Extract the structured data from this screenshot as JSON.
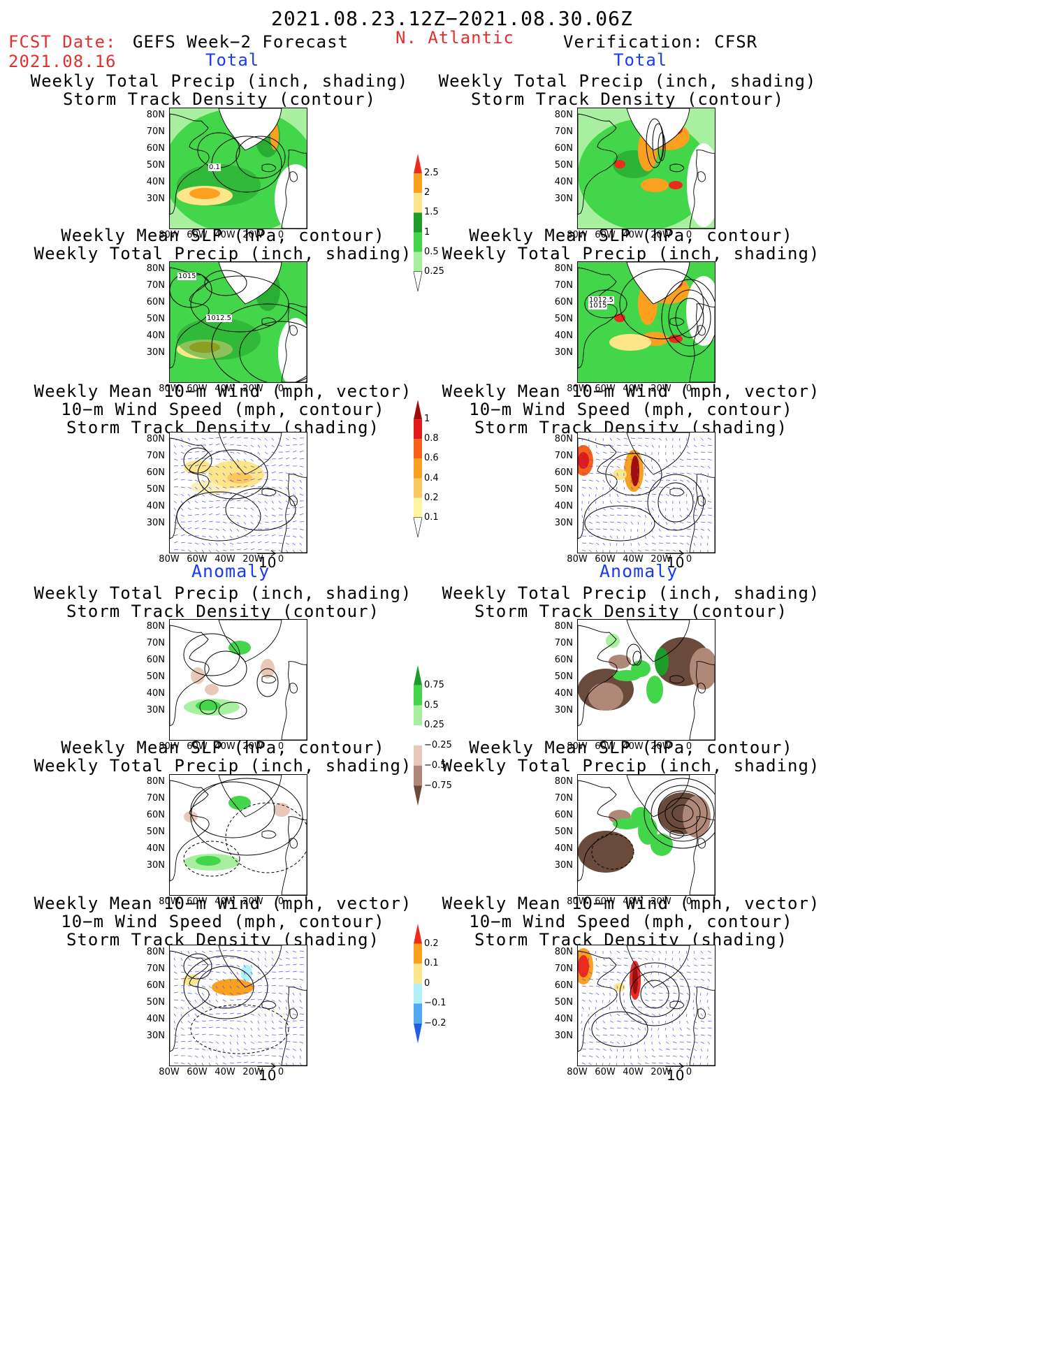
{
  "header": {
    "period": "2021.08.23.12Z−2021.08.30.06Z",
    "fcst_label": "FCST Date:",
    "fcst_date": "2021.08.16",
    "forecast_title": "GEFS Week−2 Forecast",
    "region": "N. Atlantic",
    "verification": "Verification: CFSR"
  },
  "sections": {
    "total": "Total",
    "anomaly": "Anomaly"
  },
  "panel_titles": {
    "precip_track": [
      "Weekly Total Precip (inch, shading)",
      "Storm Track Density (contour)"
    ],
    "slp_precip": [
      "Weekly Mean SLP (hPa, contour)",
      "Weekly Total Precip (inch, shading)"
    ],
    "wind_track": [
      "Weekly Mean 10−m Wind (mph, vector)",
      "10−m Wind Speed (mph, contour)",
      "Storm Track Density (shading)"
    ]
  },
  "axes": {
    "lat_labels": [
      "80N",
      "70N",
      "60N",
      "50N",
      "40N",
      "30N"
    ],
    "lon_labels": [
      "80W",
      "60W",
      "40W",
      "20W",
      "0"
    ]
  },
  "vector_ref": "10",
  "contour_labels": {
    "p1": "0.1",
    "p2a": "1015",
    "p2b": "1012.5",
    "p5a": "1012.5",
    "p5b": "1015"
  },
  "colorbars": {
    "precip_total": {
      "labels": [
        "2.5",
        "2",
        "1.5",
        "1",
        "0.5",
        "0.25"
      ],
      "colors": [
        "#ee2a1a",
        "#fca020",
        "#fde68a",
        "#1e9c2a",
        "#44d64a",
        "#a8f0a0",
        "#ffffff"
      ]
    },
    "track_total": {
      "labels": [
        "1",
        "0.8",
        "0.6",
        "0.4",
        "0.2",
        "0.1"
      ],
      "colors": [
        "#a00d0d",
        "#e01a1a",
        "#f8601a",
        "#f8a020",
        "#fbc860",
        "#fdf5a0",
        "#ffffff"
      ]
    },
    "precip_anom": {
      "labels": [
        "0.75",
        "0.5",
        "0.25",
        "−0.25",
        "−0.5",
        "−0.75"
      ],
      "colors": [
        "#1e9c2a",
        "#44d64a",
        "#a8f0a0",
        "#ffffff",
        "#e8c8b8",
        "#b08878",
        "#6a4a3a"
      ]
    },
    "track_anom": {
      "labels": [
        "0.2",
        "0.1",
        "0",
        "−0.1",
        "−0.2"
      ],
      "colors": [
        "#ee2a1a",
        "#fca020",
        "#fde68a",
        "#b0f0f8",
        "#50a8f0",
        "#1e60e0"
      ]
    }
  }
}
